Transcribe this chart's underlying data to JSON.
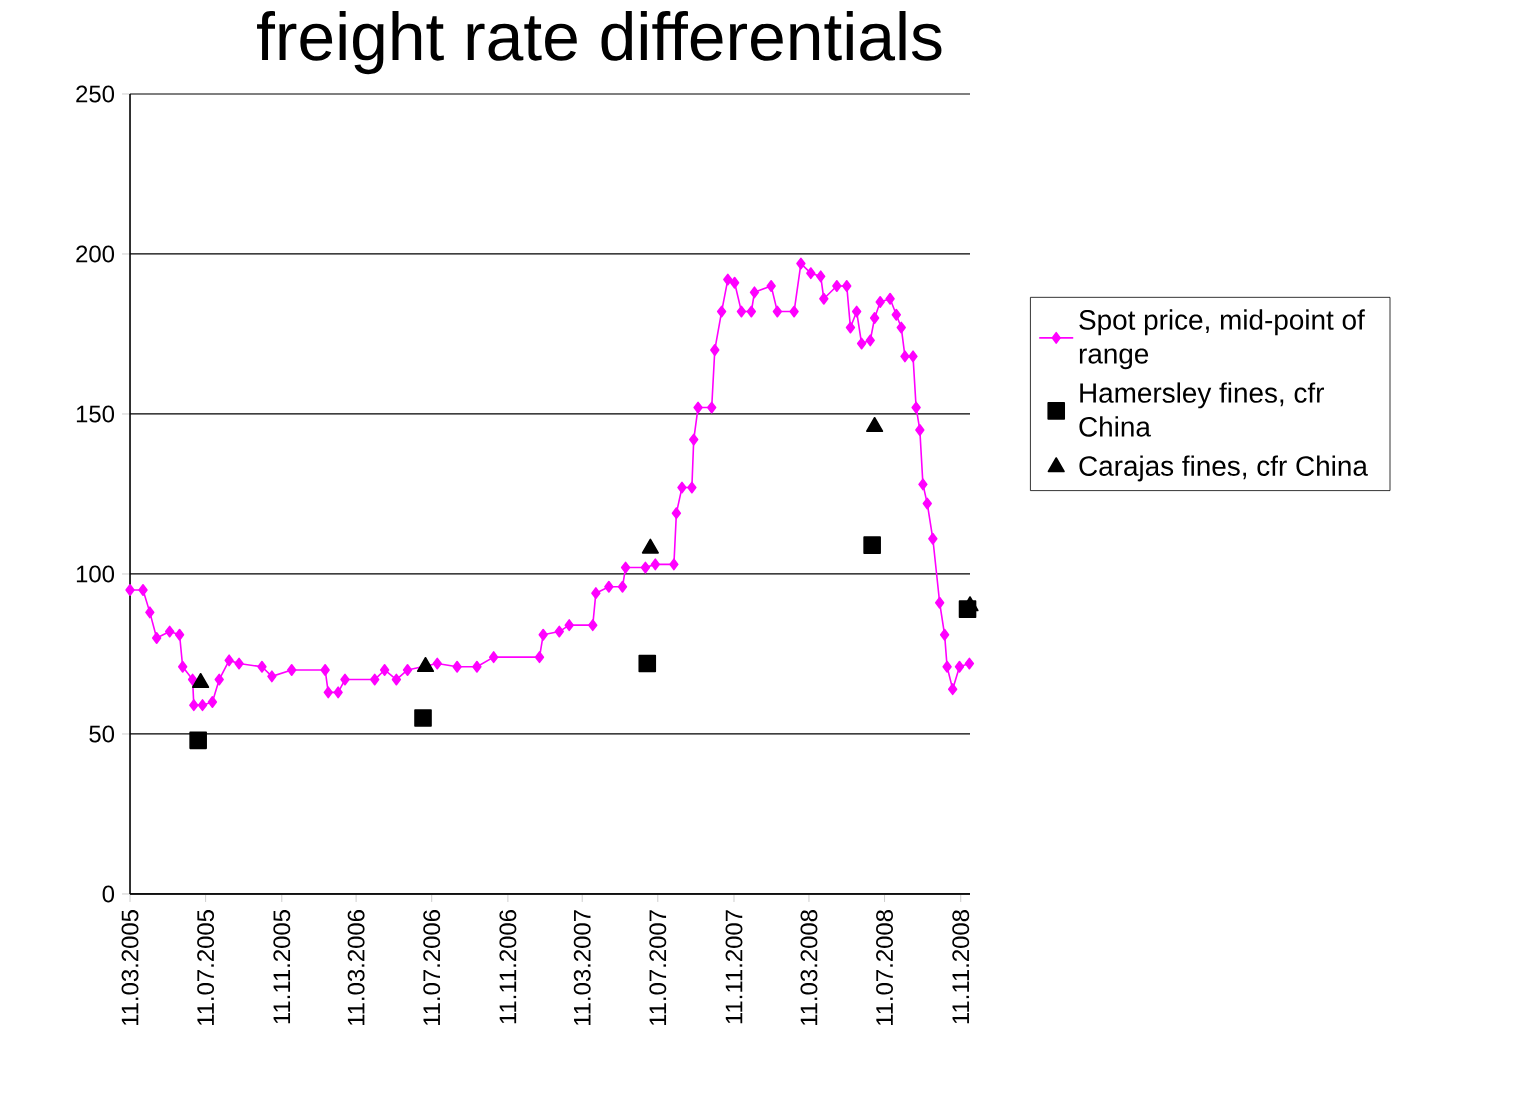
{
  "chart_data": {
    "type": "line",
    "title": "freight rate differentials",
    "xlim": [
      "2005-03-11",
      "2008-11-26"
    ],
    "ylim": [
      0,
      250
    ],
    "yticks": [
      0,
      50,
      100,
      150,
      200,
      250
    ],
    "xticks": [
      {
        "value": "2005-03-11",
        "label": "11.03.2005"
      },
      {
        "value": "2005-07-11",
        "label": "11.07.2005"
      },
      {
        "value": "2005-11-11",
        "label": "11.11.2005"
      },
      {
        "value": "2006-03-11",
        "label": "11.03.2006"
      },
      {
        "value": "2006-07-11",
        "label": "11.07.2006"
      },
      {
        "value": "2006-11-11",
        "label": "11.11.2006"
      },
      {
        "value": "2007-03-11",
        "label": "11.03.2007"
      },
      {
        "value": "2007-07-11",
        "label": "11.07.2007"
      },
      {
        "value": "2007-11-11",
        "label": "11.11.2007"
      },
      {
        "value": "2008-03-11",
        "label": "11.03.2008"
      },
      {
        "value": "2008-07-11",
        "label": "11.07.2008"
      },
      {
        "value": "2008-11-11",
        "label": "11.11.2008"
      }
    ],
    "grid": "y",
    "legend": "right",
    "series": [
      {
        "name": "Spot price, mid-point of range",
        "color": "#ff00ff",
        "marker": "diamond",
        "x": [
          "2005-03-11",
          "2005-04-01",
          "2005-04-12",
          "2005-04-23",
          "2005-05-14",
          "2005-05-30",
          "2005-06-04",
          "2005-06-20",
          "2005-06-22",
          "2005-07-06",
          "2005-07-22",
          "2005-08-02",
          "2005-08-18",
          "2005-09-03",
          "2005-10-10",
          "2005-10-26",
          "2005-11-27",
          "2006-01-20",
          "2006-01-25",
          "2006-02-10",
          "2006-02-21",
          "2006-04-10",
          "2006-04-26",
          "2006-05-15",
          "2006-06-02",
          "2006-07-20",
          "2006-08-21",
          "2006-09-22",
          "2006-10-19",
          "2007-01-01",
          "2007-01-07",
          "2007-02-02",
          "2007-02-18",
          "2007-03-28",
          "2007-04-02",
          "2007-04-23",
          "2007-05-15",
          "2007-05-20",
          "2007-06-21",
          "2007-07-07",
          "2007-08-06",
          "2007-08-10",
          "2007-08-19",
          "2007-09-04",
          "2007-09-07",
          "2007-09-14",
          "2007-10-06",
          "2007-10-11",
          "2007-10-22",
          "2007-11-01",
          "2007-11-12",
          "2007-11-23",
          "2007-12-09",
          "2007-12-14",
          "2008-01-10",
          "2008-01-20",
          "2008-02-16",
          "2008-02-27",
          "2008-03-14",
          "2008-03-30",
          "2008-04-04",
          "2008-04-25",
          "2008-05-11",
          "2008-05-17",
          "2008-05-27",
          "2008-06-04",
          "2008-06-18",
          "2008-06-25",
          "2008-07-04",
          "2008-07-20",
          "2008-07-30",
          "2008-08-07",
          "2008-08-13",
          "2008-08-26",
          "2008-08-31",
          "2008-09-06",
          "2008-09-11",
          "2008-09-18",
          "2008-09-27",
          "2008-10-08",
          "2008-10-16",
          "2008-10-20",
          "2008-10-29",
          "2008-11-09",
          "2008-11-25"
        ],
        "values": [
          95,
          95,
          88,
          80,
          82,
          81,
          71,
          67,
          59,
          59,
          60,
          67,
          73,
          72,
          71,
          68,
          70,
          70,
          63,
          63,
          67,
          67,
          70,
          67,
          70,
          72,
          71,
          71,
          74,
          74,
          81,
          82,
          84,
          84,
          94,
          96,
          96,
          102,
          102,
          103,
          103,
          119,
          127,
          127,
          142,
          152,
          152,
          170,
          182,
          192,
          191,
          182,
          182,
          188,
          190,
          182,
          182,
          197,
          194,
          193,
          186,
          190,
          190,
          177,
          182,
          172,
          173,
          180,
          185,
          186,
          181,
          177,
          168,
          168,
          152,
          145,
          128,
          122,
          111,
          91,
          81,
          71,
          64,
          71,
          72
        ]
      },
      {
        "name": "Hamersley fines, cfr China",
        "color": "#000000",
        "type": "scatter",
        "marker": "square",
        "x": [
          "2005-06-29",
          "2006-06-27",
          "2007-06-24",
          "2008-06-21",
          "2008-11-22"
        ],
        "values": [
          48,
          55,
          72,
          109,
          89
        ]
      },
      {
        "name": "Carajas fines, cfr China",
        "color": "#000000",
        "type": "scatter",
        "marker": "triangle",
        "x": [
          "2005-07-03",
          "2006-07-01",
          "2007-06-29",
          "2008-06-25",
          "2008-11-26"
        ],
        "values": [
          66,
          71,
          108,
          146,
          90
        ]
      }
    ]
  }
}
